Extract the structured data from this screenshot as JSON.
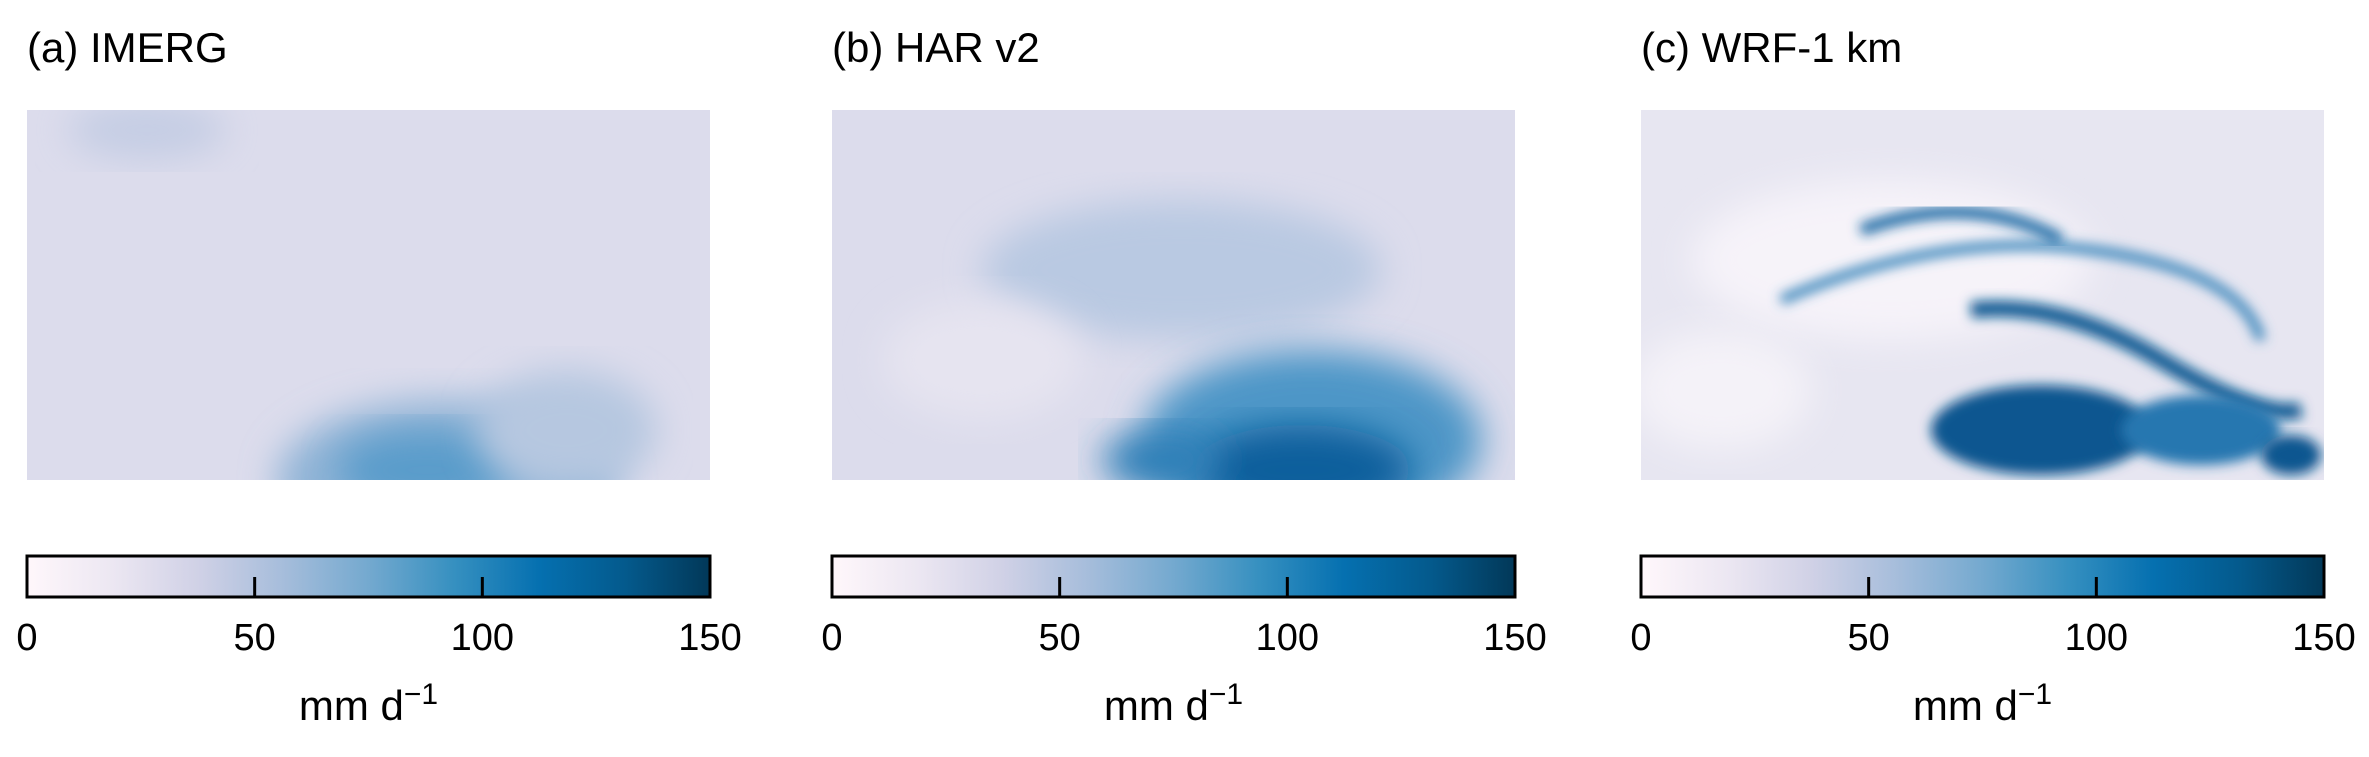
{
  "chart_data": [
    {
      "type": "heatmap",
      "title": "(a) IMERG",
      "clim": [
        0,
        150
      ],
      "cticks": [
        0,
        50,
        100,
        150
      ],
      "colorbar_label": "mm d",
      "colorbar_label_exponent": "−1",
      "colormap": [
        "#fff7fb",
        "#ece7f2",
        "#d0d1e6",
        "#a6bddb",
        "#74a9cf",
        "#3690c0",
        "#0570b0",
        "#045a8d",
        "#023858"
      ]
    },
    {
      "type": "heatmap",
      "title": "(b) HAR v2",
      "clim": [
        0,
        150
      ],
      "cticks": [
        0,
        50,
        100,
        150
      ],
      "colorbar_label": "mm d",
      "colorbar_label_exponent": "−1",
      "colormap": [
        "#fff7fb",
        "#ece7f2",
        "#d0d1e6",
        "#a6bddb",
        "#74a9cf",
        "#3690c0",
        "#0570b0",
        "#045a8d",
        "#023858"
      ]
    },
    {
      "type": "heatmap",
      "title": "(c) WRF-1 km",
      "clim": [
        0,
        150
      ],
      "cticks": [
        0,
        50,
        100,
        150
      ],
      "colorbar_label": "mm d",
      "colorbar_label_exponent": "−1",
      "colormap": [
        "#fff7fb",
        "#ece7f2",
        "#d0d1e6",
        "#a6bddb",
        "#74a9cf",
        "#3690c0",
        "#0570b0",
        "#045a8d",
        "#023858"
      ]
    }
  ]
}
